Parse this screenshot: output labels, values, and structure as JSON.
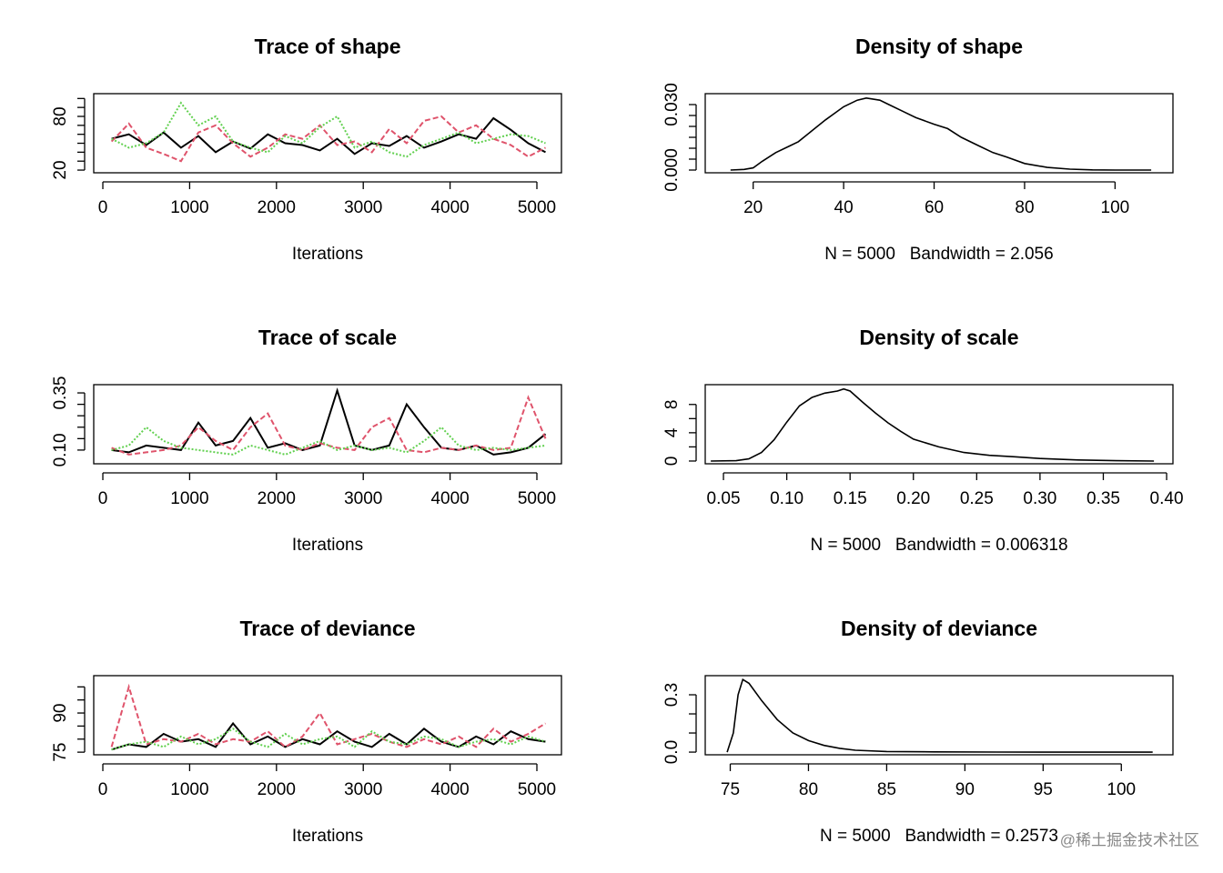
{
  "chart_data": [
    {
      "type": "trace",
      "title": "Trace of shape",
      "xlabel": "Iterations",
      "x": [
        100,
        300,
        500,
        700,
        900,
        1100,
        1300,
        1500,
        1700,
        1900,
        2100,
        2300,
        2500,
        2700,
        2900,
        3100,
        3300,
        3500,
        3700,
        3900,
        4100,
        4300,
        4500,
        4700,
        4900,
        5100
      ],
      "series": [
        {
          "color": "#000000",
          "values": [
            55,
            60,
            48,
            62,
            45,
            58,
            40,
            52,
            44,
            60,
            50,
            48,
            42,
            55,
            38,
            50,
            47,
            58,
            45,
            52,
            60,
            55,
            78,
            65,
            50,
            40
          ]
        },
        {
          "color": "#DF536B",
          "values": [
            52,
            72,
            45,
            38,
            30,
            62,
            70,
            50,
            35,
            45,
            60,
            55,
            70,
            48,
            52,
            40,
            66,
            50,
            75,
            80,
            62,
            70,
            55,
            48,
            35,
            45
          ]
        },
        {
          "color": "#61D04F",
          "values": [
            55,
            45,
            50,
            62,
            95,
            70,
            80,
            52,
            45,
            40,
            58,
            50,
            68,
            80,
            45,
            52,
            40,
            35,
            48,
            55,
            62,
            50,
            55,
            60,
            58,
            50
          ]
        }
      ],
      "xlim": [
        -105,
        5283
      ],
      "ylim": [
        17,
        105.4
      ],
      "xticks": [
        0,
        1000,
        2000,
        3000,
        4000,
        5000
      ],
      "yticks": [
        20,
        80
      ],
      "yminorticks": [
        30,
        40,
        50,
        60,
        70,
        90,
        100
      ]
    },
    {
      "type": "density",
      "title": "Density of shape",
      "xlabel": "N = 5000   Bandwidth = 2.056",
      "color": "#000000",
      "x": [
        15,
        18,
        20,
        22,
        25,
        28,
        30,
        33,
        36,
        40,
        43,
        45,
        48,
        50,
        53,
        56,
        60,
        63,
        66,
        70,
        73,
        76,
        80,
        85,
        90,
        95,
        100,
        108
      ],
      "values": [
        0,
        0.0003,
        0.001,
        0.004,
        0.008,
        0.011,
        0.013,
        0.018,
        0.023,
        0.029,
        0.032,
        0.033,
        0.032,
        0.03,
        0.027,
        0.024,
        0.021,
        0.019,
        0.015,
        0.011,
        0.008,
        0.006,
        0.003,
        0.0012,
        0.0004,
        0.0001,
        0,
        0
      ],
      "xlim": [
        9.4,
        112.8
      ],
      "ylim": [
        -0.00125,
        0.035
      ],
      "xticks": [
        20,
        40,
        60,
        80,
        100
      ],
      "yticks": [
        {
          "value": 0,
          "label": "0.000"
        },
        {
          "value": 0.03,
          "label": "0.030"
        }
      ],
      "yminorticks": [
        0.005,
        0.01,
        0.015,
        0.02,
        0.025
      ]
    },
    {
      "type": "trace",
      "title": "Trace of scale",
      "xlabel": "Iterations",
      "x": [
        100,
        300,
        500,
        700,
        900,
        1100,
        1300,
        1500,
        1700,
        1900,
        2100,
        2300,
        2500,
        2700,
        2900,
        3100,
        3300,
        3500,
        3700,
        3900,
        4100,
        4300,
        4500,
        4700,
        4900,
        5100
      ],
      "series": [
        {
          "color": "#000000",
          "values": [
            0.1,
            0.09,
            0.12,
            0.11,
            0.1,
            0.22,
            0.12,
            0.14,
            0.24,
            0.11,
            0.13,
            0.1,
            0.12,
            0.36,
            0.12,
            0.1,
            0.12,
            0.3,
            0.2,
            0.11,
            0.1,
            0.12,
            0.08,
            0.09,
            0.11,
            0.17
          ]
        },
        {
          "color": "#DF536B",
          "values": [
            0.11,
            0.08,
            0.09,
            0.1,
            0.12,
            0.2,
            0.14,
            0.1,
            0.2,
            0.26,
            0.12,
            0.1,
            0.13,
            0.11,
            0.1,
            0.2,
            0.24,
            0.1,
            0.09,
            0.11,
            0.1,
            0.12,
            0.1,
            0.11,
            0.33,
            0.15
          ]
        },
        {
          "color": "#61D04F",
          "values": [
            0.1,
            0.12,
            0.2,
            0.14,
            0.11,
            0.1,
            0.09,
            0.08,
            0.12,
            0.1,
            0.08,
            0.11,
            0.14,
            0.1,
            0.12,
            0.1,
            0.11,
            0.09,
            0.14,
            0.2,
            0.12,
            0.1,
            0.11,
            0.1,
            0.11,
            0.12
          ]
        }
      ],
      "xlim": [
        -105,
        5283
      ],
      "ylim": [
        0.04,
        0.386
      ],
      "xticks": [
        0,
        1000,
        2000,
        3000,
        4000,
        5000
      ],
      "yticks": [
        {
          "value": 0.1,
          "label": "0.10"
        },
        0.35
      ],
      "yminorticks": [
        0.15,
        0.2,
        0.25,
        0.3
      ]
    },
    {
      "type": "density",
      "title": "Density of scale",
      "xlabel": "N = 5000   Bandwidth = 0.006318",
      "color": "#000000",
      "x": [
        0.04,
        0.06,
        0.07,
        0.08,
        0.09,
        0.1,
        0.11,
        0.12,
        0.13,
        0.14,
        0.145,
        0.15,
        0.16,
        0.17,
        0.18,
        0.19,
        0.2,
        0.22,
        0.24,
        0.26,
        0.28,
        0.3,
        0.33,
        0.36,
        0.39
      ],
      "values": [
        0,
        0.05,
        0.3,
        1.2,
        3,
        5.5,
        7.8,
        9.0,
        9.6,
        9.9,
        10.2,
        9.9,
        8.3,
        6.8,
        5.4,
        4.2,
        3.1,
        2.0,
        1.2,
        0.8,
        0.6,
        0.35,
        0.15,
        0.05,
        0
      ],
      "xlim": [
        0.0356,
        0.405
      ],
      "xticks": [
        0.05,
        {
          "value": 0.1,
          "label": "0.10"
        },
        0.15,
        {
          "value": 0.2,
          "label": "0.20"
        },
        0.25,
        {
          "value": 0.3,
          "label": "0.30"
        },
        0.35,
        {
          "value": 0.4,
          "label": "0.40"
        }
      ],
      "ylim": [
        -0.39,
        10.8
      ],
      "yticks": [
        0,
        4,
        8
      ],
      "yminorticks": [
        2,
        6
      ]
    },
    {
      "type": "trace",
      "title": "Trace of deviance",
      "xlabel": "Iterations",
      "x": [
        100,
        300,
        500,
        700,
        900,
        1100,
        1300,
        1500,
        1700,
        1900,
        2100,
        2300,
        2500,
        2700,
        2900,
        3100,
        3300,
        3500,
        3700,
        3900,
        4100,
        4300,
        4500,
        4700,
        4900,
        5100
      ],
      "series": [
        {
          "color": "#000000",
          "values": [
            76,
            78,
            77,
            82,
            79,
            80,
            77,
            86,
            78,
            81,
            77,
            80,
            78,
            83,
            79,
            77,
            82,
            78,
            84,
            79,
            77,
            81,
            78,
            83,
            80,
            79
          ]
        },
        {
          "color": "#DF536B",
          "values": [
            77,
            100,
            78,
            80,
            79,
            82,
            78,
            80,
            79,
            83,
            77,
            81,
            90,
            78,
            80,
            82,
            79,
            77,
            80,
            78,
            81,
            77,
            84,
            79,
            82,
            86
          ]
        },
        {
          "color": "#61D04F",
          "values": [
            76,
            78,
            79,
            77,
            81,
            78,
            80,
            84,
            79,
            77,
            82,
            78,
            80,
            81,
            77,
            83,
            79,
            78,
            81,
            80,
            77,
            79,
            80,
            78,
            81,
            79
          ]
        }
      ],
      "xlim": [
        -105,
        5283
      ],
      "ylim": [
        74,
        104.3
      ],
      "xticks": [
        0,
        1000,
        2000,
        3000,
        4000,
        5000
      ],
      "yticks": [
        75,
        90
      ],
      "yminorticks": [
        80,
        85,
        95,
        100
      ]
    },
    {
      "type": "density",
      "title": "Density of deviance",
      "xlabel": "N = 5000   Bandwidth = 0.2573",
      "color": "#000000",
      "x": [
        74.8,
        75.2,
        75.5,
        75.8,
        76.2,
        77,
        78,
        79,
        80,
        81,
        82,
        83,
        85,
        88,
        92,
        102
      ],
      "values": [
        0,
        0.1,
        0.3,
        0.38,
        0.36,
        0.27,
        0.17,
        0.1,
        0.06,
        0.035,
        0.02,
        0.01,
        0.003,
        0.001,
        0.0002,
        0
      ],
      "xlim": [
        73.4,
        103.3
      ],
      "xticks": [
        75,
        80,
        85,
        90,
        95,
        100
      ],
      "ylim": [
        -0.014,
        0.4
      ],
      "yticks": [
        {
          "value": 0,
          "label": "0.0"
        },
        0.3
      ],
      "yminorticks": [
        0.1,
        0.2
      ]
    }
  ],
  "watermark": "@稀土掘金技术社区"
}
